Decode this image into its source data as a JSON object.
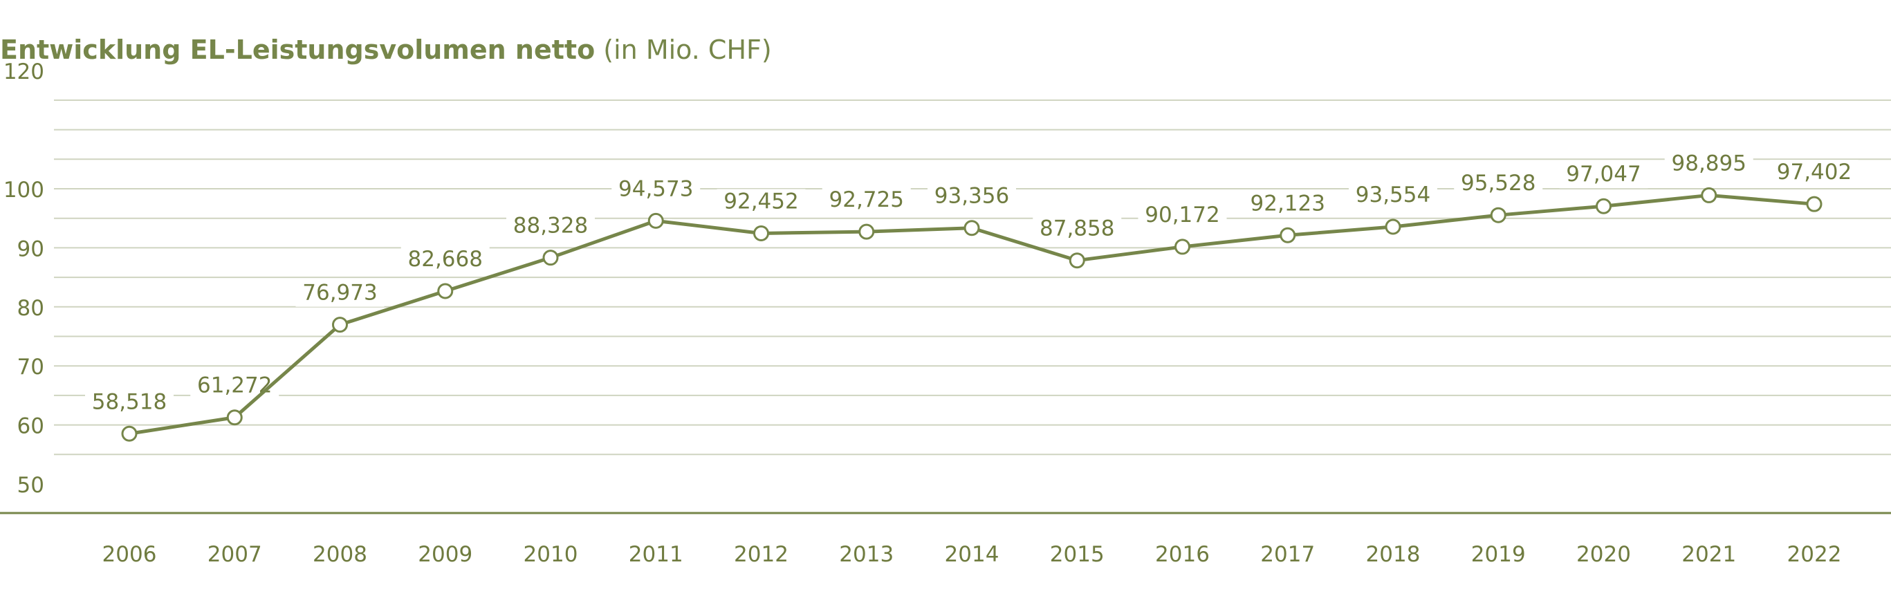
{
  "title": "Entwicklung EL-Leistungsvolumen netto",
  "subtitle": "(in Mio. CHF)",
  "colors": {
    "series": "#76864a",
    "title": "#76864a",
    "text": "#6f7b3f",
    "grid": "#cfd4c0",
    "axis": "#76864a",
    "background": "#ffffff"
  },
  "chart_data": {
    "type": "line",
    "title": "Entwicklung EL-Leistungsvolumen netto (in Mio. CHF)",
    "xlabel": "",
    "ylabel": "",
    "categories": [
      "2006",
      "2007",
      "2008",
      "2009",
      "2010",
      "2011",
      "2012",
      "2013",
      "2014",
      "2015",
      "2016",
      "2017",
      "2018",
      "2019",
      "2020",
      "2021",
      "2022"
    ],
    "values": [
      58.518,
      61.272,
      76.973,
      82.668,
      88.328,
      94.573,
      92.452,
      92.725,
      93.356,
      87.858,
      90.172,
      92.123,
      93.554,
      95.528,
      97.047,
      98.895,
      97.402
    ],
    "data_labels": [
      "58,518",
      "61,272",
      "76,973",
      "82,668",
      "88,328",
      "94,573",
      "92,452",
      "92,725",
      "93,356",
      "87,858",
      "90,172",
      "92,123",
      "93,554",
      "95,528",
      "97,047",
      "98,895",
      "97,402"
    ],
    "yticks": [
      50,
      60,
      70,
      80,
      90,
      100,
      120
    ],
    "ylim": [
      45,
      130
    ],
    "grid": true,
    "marker": "open-circle",
    "legend": "none"
  }
}
